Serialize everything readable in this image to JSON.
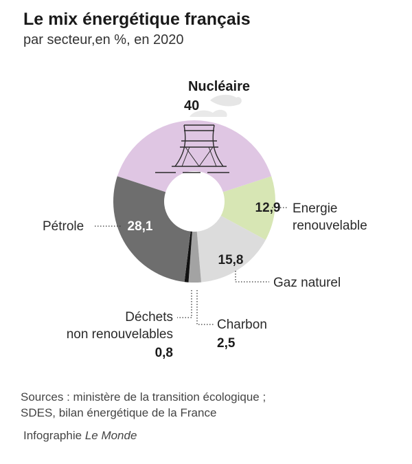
{
  "header": {
    "title": "Le mix énergétique français",
    "subtitle": "par secteur,en %, en 2020"
  },
  "chart_data": {
    "type": "pie",
    "title": "Le mix énergétique français",
    "subtitle": "par secteur,en %, en 2020",
    "unit": "%",
    "slices": [
      {
        "label": "Nucléaire",
        "value": 40,
        "value_label": "40",
        "color": "#dfc6e3"
      },
      {
        "label": "Energie renouvelable",
        "value": 12.9,
        "value_label": "12,9",
        "color": "#d7e6b4"
      },
      {
        "label": "Gaz naturel",
        "value": 15.8,
        "value_label": "15,8",
        "color": "#dcdcdc"
      },
      {
        "label": "Charbon",
        "value": 2.5,
        "value_label": "2,5",
        "color": "#a3a3a3"
      },
      {
        "label": "Déchets non renouvelables",
        "value": 0.8,
        "value_label": "0,8",
        "color": "#111111"
      },
      {
        "label": "Pétrole",
        "value": 28.1,
        "value_label": "28,1",
        "color": "#6e6e6e"
      }
    ],
    "legend": "none"
  },
  "labels": {
    "nucleaire": "Nucléaire",
    "nucleaire_value": "40",
    "renouvelable_line1": "Energie",
    "renouvelable_line2": "renouvelable",
    "renouvelable_value": "12,9",
    "gaz": "Gaz naturel",
    "gaz_value": "15,8",
    "charbon": "Charbon",
    "charbon_value": "2,5",
    "dechets_line1": "Déchets",
    "dechets_line2": "non renouvelables",
    "dechets_value": "0,8",
    "petrole": "Pétrole",
    "petrole_value": "28,1"
  },
  "footer": {
    "source_line1": "Sources : ministère de la transition écologique ;",
    "source_line2": "SDES, bilan énergétique de la France",
    "credit_prefix": "Infographie",
    "credit_brand": "Le Monde"
  },
  "icons": {
    "nuclear": "cooling-tower-icon"
  }
}
